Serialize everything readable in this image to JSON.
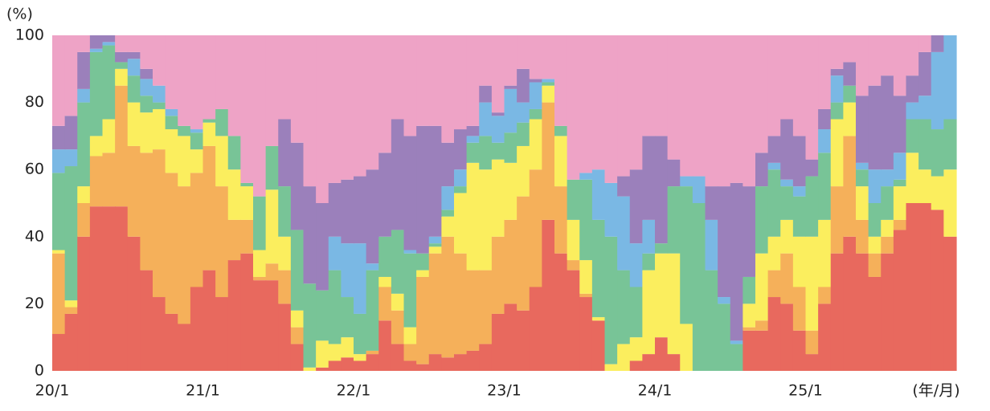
{
  "chart_data": {
    "type": "stacked_bar",
    "y_unit": "(%)",
    "x_label": "(年/月)",
    "categories": [
      "20/1",
      null,
      null,
      null,
      null,
      null,
      null,
      null,
      null,
      null,
      null,
      null,
      "21/1",
      null,
      null,
      null,
      null,
      null,
      null,
      null,
      null,
      null,
      null,
      null,
      "22/1",
      null,
      null,
      null,
      null,
      null,
      null,
      null,
      null,
      null,
      null,
      null,
      "23/1",
      null,
      null,
      null,
      null,
      null,
      null,
      null,
      null,
      null,
      null,
      null,
      "24/1",
      null,
      null,
      null,
      null,
      null,
      null,
      null,
      null,
      null,
      null,
      null,
      "25/1",
      null,
      null,
      null,
      null,
      null,
      null,
      null,
      null,
      null,
      null,
      null
    ],
    "ylim": [
      0,
      100
    ],
    "yticks": [
      0,
      20,
      40,
      60,
      80,
      100
    ],
    "series": [
      {
        "color": "#e8695e",
        "values": [
          11,
          17,
          40,
          49,
          49,
          49,
          40,
          30,
          22,
          17,
          14,
          25,
          30,
          22,
          33,
          35,
          27,
          27,
          20,
          8,
          0,
          1,
          3,
          4,
          3,
          5,
          15,
          8,
          3,
          2,
          5,
          4,
          5,
          6,
          8,
          17,
          20,
          18,
          25,
          45,
          35,
          30,
          22,
          15,
          0,
          0,
          3,
          5,
          10,
          5,
          0,
          0,
          0,
          0,
          0,
          12,
          12,
          22,
          20,
          12,
          5,
          20,
          35,
          40,
          35,
          28,
          35,
          42,
          50,
          50,
          48,
          40
        ]
      },
      {
        "color": "#f5b05a",
        "values": [
          24,
          2,
          10,
          15,
          16,
          36,
          27,
          35,
          44,
          42,
          41,
          34,
          37,
          33,
          12,
          10,
          1,
          5,
          10,
          5,
          0,
          0,
          0,
          0,
          0,
          1,
          10,
          10,
          5,
          26,
          30,
          36,
          30,
          24,
          22,
          23,
          25,
          34,
          35,
          35,
          20,
          3,
          1,
          0,
          0,
          0,
          0,
          0,
          0,
          0,
          0,
          0,
          0,
          0,
          0,
          1,
          3,
          8,
          15,
          13,
          7,
          5,
          20,
          30,
          10,
          7,
          5,
          3,
          0,
          0,
          0,
          0
        ]
      },
      {
        "color": "#fbee5e",
        "values": [
          1,
          2,
          5,
          6,
          10,
          5,
          13,
          12,
          12,
          13,
          15,
          7,
          7,
          15,
          15,
          10,
          8,
          22,
          10,
          5,
          1,
          8,
          5,
          6,
          2,
          0,
          3,
          5,
          5,
          2,
          2,
          6,
          18,
          32,
          30,
          23,
          17,
          15,
          15,
          5,
          15,
          12,
          10,
          1,
          2,
          8,
          7,
          25,
          25,
          30,
          14,
          0,
          0,
          0,
          0,
          7,
          20,
          10,
          10,
          15,
          28,
          20,
          20,
          10,
          10,
          5,
          5,
          10,
          15,
          10,
          10,
          20
        ]
      },
      {
        "color": "#78c497",
        "values": [
          23,
          40,
          25,
          25,
          22,
          2,
          8,
          5,
          2,
          4,
          3,
          5,
          1,
          8,
          10,
          1,
          16,
          13,
          15,
          24,
          25,
          15,
          22,
          12,
          12,
          24,
          12,
          19,
          22,
          5,
          1,
          2,
          2,
          6,
          10,
          5,
          9,
          7,
          3,
          1,
          3,
          12,
          24,
          29,
          38,
          22,
          15,
          5,
          3,
          20,
          41,
          50,
          30,
          20,
          8,
          8,
          20,
          20,
          10,
          12,
          18,
          20,
          5,
          5,
          5,
          10,
          10,
          2,
          10,
          15,
          14,
          15
        ]
      },
      {
        "color": "#7ab8e4",
        "values": [
          7,
          5,
          4,
          1,
          1,
          0,
          5,
          5,
          5,
          2,
          0,
          1,
          0,
          0,
          0,
          0,
          0,
          0,
          0,
          0,
          0,
          0,
          10,
          16,
          21,
          2,
          0,
          0,
          1,
          0,
          2,
          7,
          5,
          2,
          10,
          8,
          13,
          6,
          8,
          1,
          0,
          0,
          2,
          15,
          16,
          22,
          13,
          10,
          0,
          0,
          3,
          8,
          15,
          2,
          1,
          0,
          0,
          2,
          2,
          3,
          0,
          7,
          8,
          0,
          2,
          10,
          5,
          8,
          5,
          7,
          23,
          25
        ]
      },
      {
        "color": "#9b80bb",
        "values": [
          7,
          10,
          11,
          4,
          2,
          3,
          2,
          3,
          0,
          0,
          0,
          0,
          0,
          0,
          0,
          0,
          0,
          0,
          20,
          26,
          29,
          26,
          16,
          19,
          20,
          28,
          25,
          33,
          34,
          38,
          33,
          13,
          12,
          3,
          5,
          1,
          1,
          10,
          1,
          0,
          0,
          0,
          0,
          0,
          0,
          6,
          22,
          25,
          32,
          8,
          0,
          0,
          10,
          33,
          47,
          27,
          10,
          8,
          18,
          15,
          5,
          6,
          2,
          7,
          20,
          25,
          28,
          17,
          8,
          13,
          5,
          0
        ]
      },
      {
        "color": "#eea3c6",
        "values": [
          27,
          24,
          5,
          0,
          0,
          5,
          5,
          10,
          15,
          22,
          27,
          28,
          25,
          22,
          30,
          44,
          48,
          33,
          25,
          32,
          45,
          50,
          44,
          43,
          42,
          40,
          35,
          25,
          30,
          27,
          27,
          32,
          28,
          27,
          15,
          23,
          15,
          10,
          13,
          13,
          27,
          43,
          41,
          40,
          44,
          42,
          40,
          30,
          30,
          37,
          42,
          42,
          45,
          45,
          44,
          45,
          35,
          30,
          25,
          30,
          37,
          22,
          10,
          8,
          18,
          15,
          12,
          18,
          12,
          5,
          0,
          0
        ]
      }
    ]
  }
}
